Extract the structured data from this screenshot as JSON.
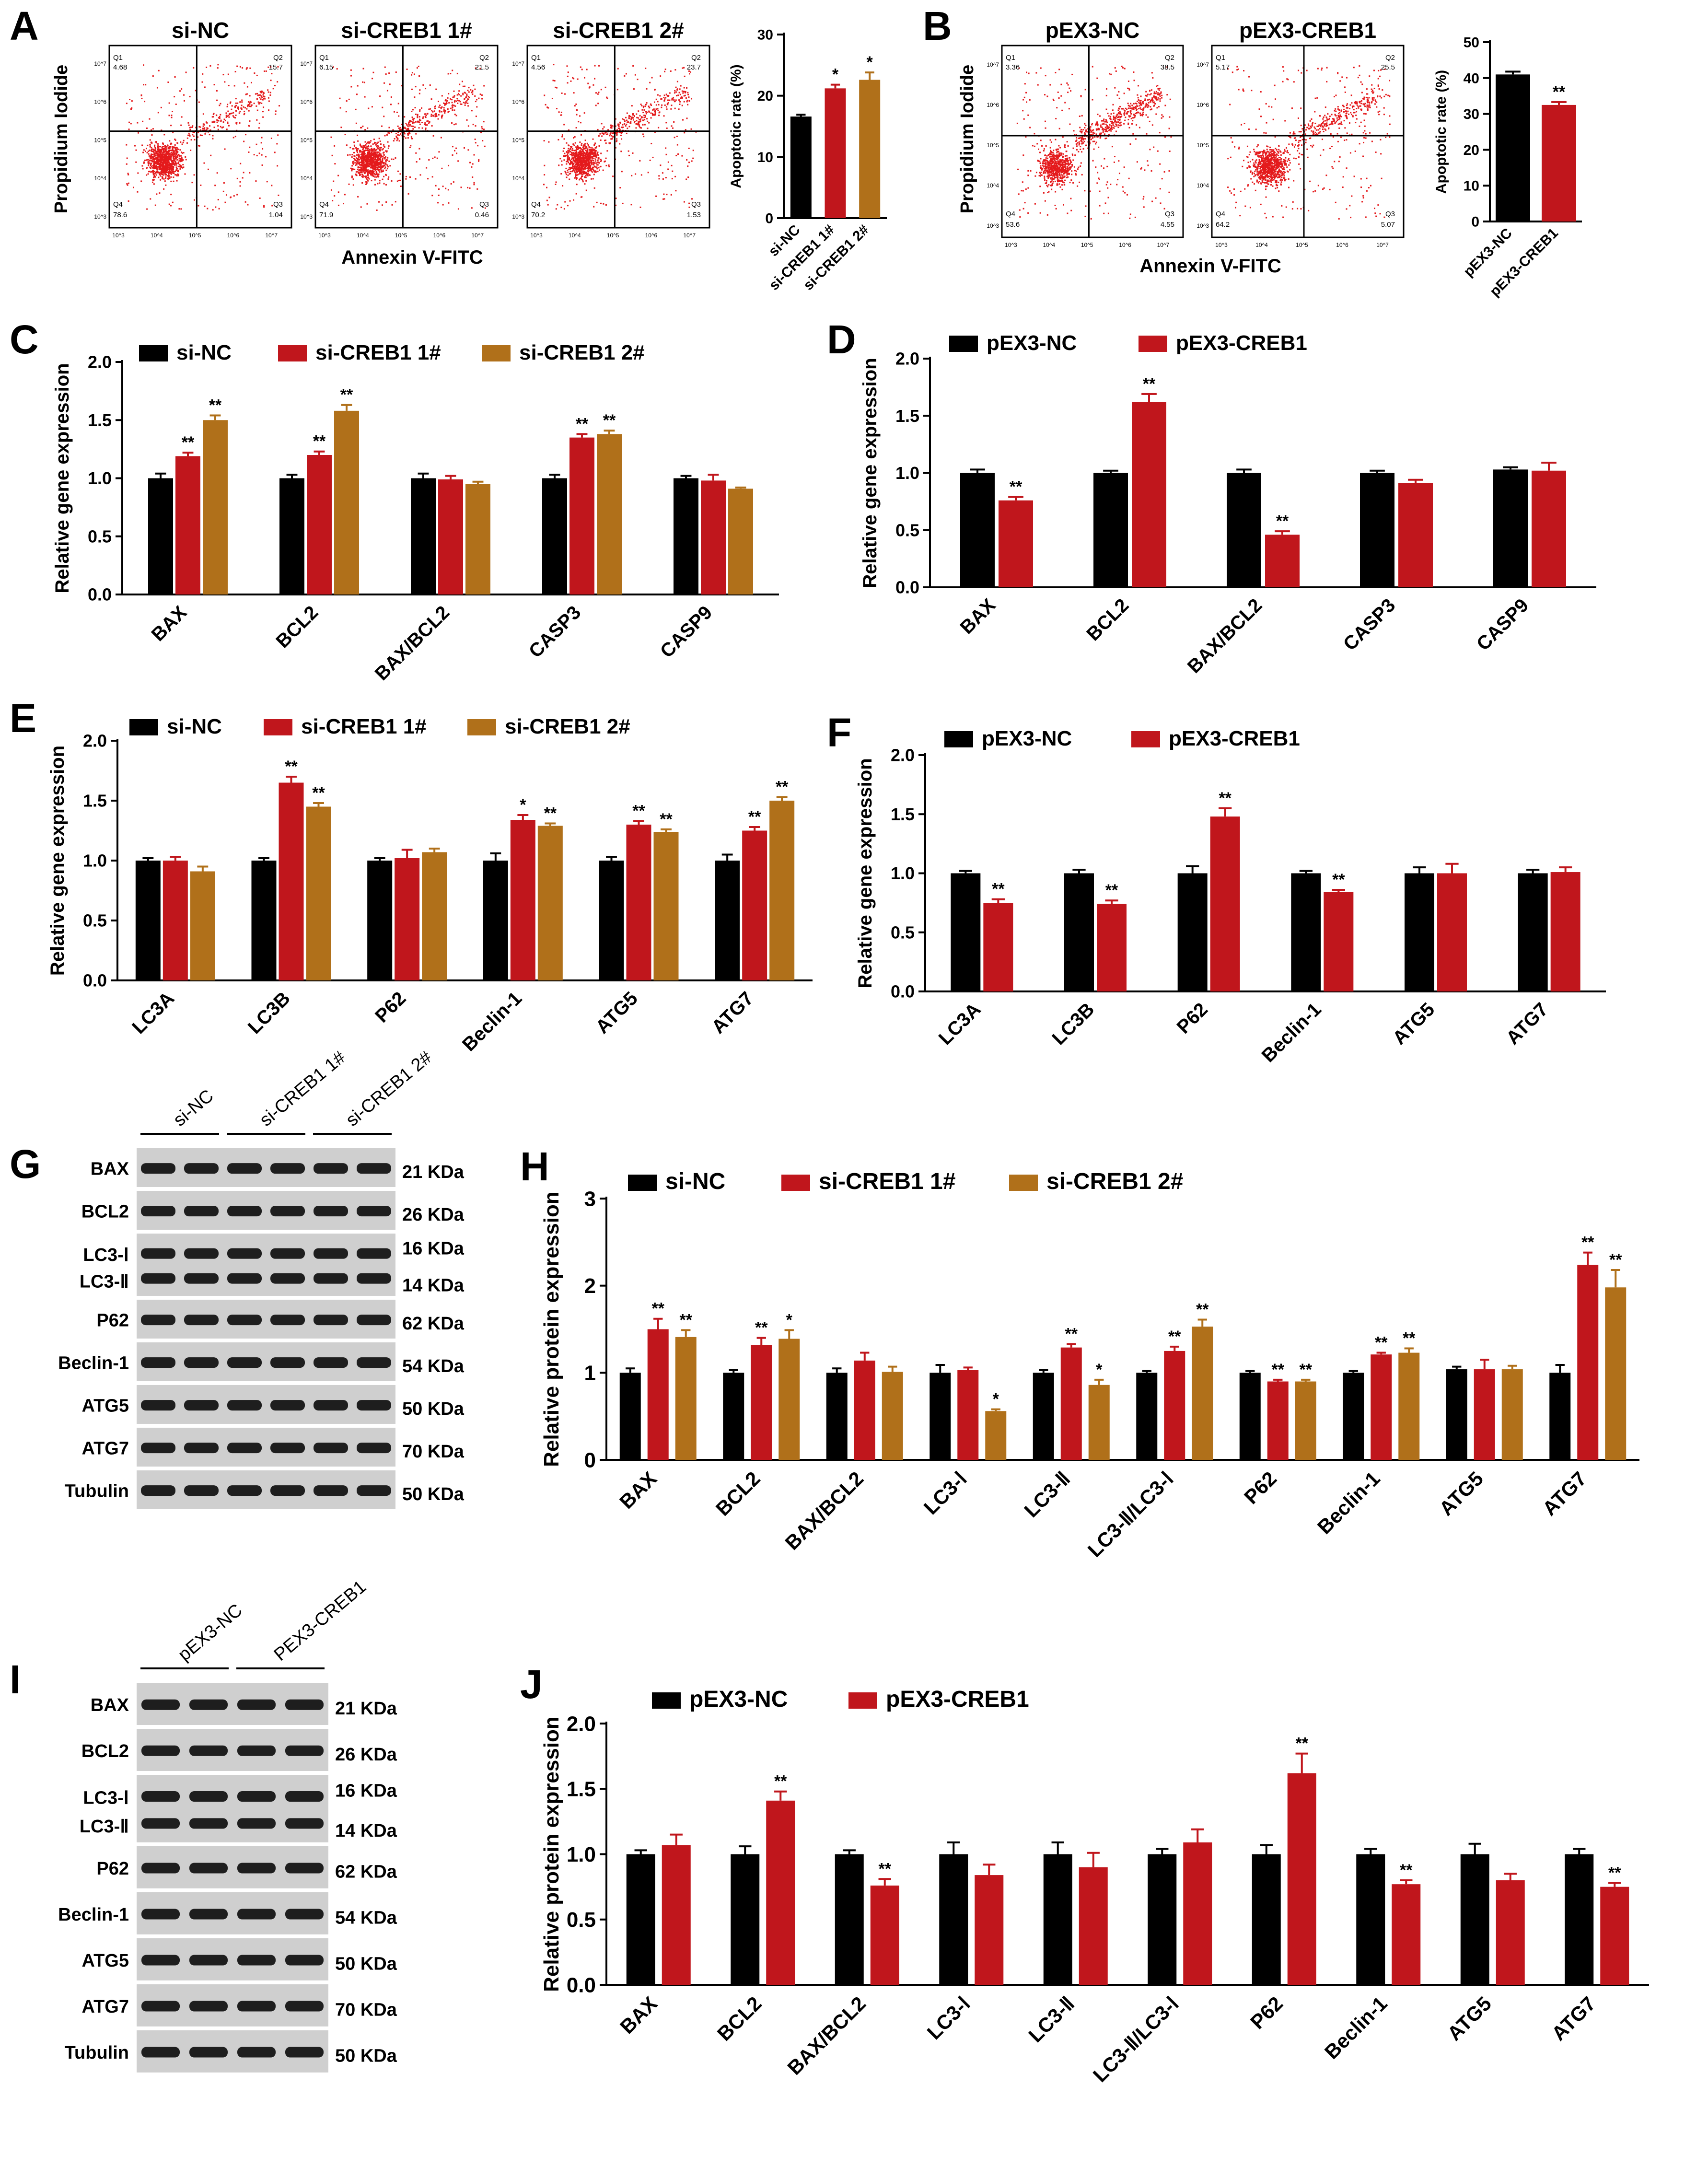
{
  "panel_letters": [
    "A",
    "B",
    "C",
    "D",
    "E",
    "F",
    "G",
    "H",
    "I",
    "J"
  ],
  "colors": {
    "black": "#000000",
    "red": "#c0161c",
    "gold": "#b0701a",
    "dots": "#e41a1c",
    "blot_dark": "#1e1e1e",
    "blot_bg": "#cfcfcf"
  },
  "flow": {
    "A": {
      "ylabel": "Propidium Iodide",
      "xlabel": "Annexin V-FITC",
      "plots": [
        {
          "title": "si-NC",
          "q1": "4.68",
          "q2": "15.7",
          "q3": "1.04",
          "q4": "78.6"
        },
        {
          "title": "si-CREB1 1#",
          "q1": "6.15",
          "q2": "21.5",
          "q3": "0.46",
          "q4": "71.9"
        },
        {
          "title": "si-CREB1 2#",
          "q1": "4.56",
          "q2": "23.7",
          "q3": "1.53",
          "q4": "70.2"
        }
      ],
      "quad_labels": [
        "Q1",
        "Q2",
        "Q3",
        "Q4"
      ],
      "tick_labels": [
        "10^3",
        "10^4",
        "10^5",
        "10^6",
        "10^7"
      ]
    },
    "B": {
      "ylabel": "Propidium Iodide",
      "xlabel": "Annexin V-FITC",
      "plots": [
        {
          "title": "pEX3-NC",
          "q1": "3.36",
          "q2": "38.5",
          "q3": "4.55",
          "q4": "53.6"
        },
        {
          "title": "pEX3-CREB1",
          "q1": "5.17",
          "q2": "25.5",
          "q3": "5.07",
          "q4": "64.2"
        }
      ],
      "quad_labels": [
        "Q1",
        "Q2",
        "Q3",
        "Q4"
      ],
      "tick_labels": [
        "10^3",
        "10^4",
        "10^5",
        "10^6",
        "10^7"
      ]
    }
  },
  "blots": {
    "G": {
      "groups": [
        "si-NC",
        "si-CREB1 1#",
        "si-CREB1 2#"
      ],
      "rows": [
        {
          "label": "BAX",
          "kda": "21 KDa"
        },
        {
          "label": "BCL2",
          "kda": "26 KDa"
        },
        {
          "label": "LC3-Ⅰ",
          "label2": "LC3-Ⅱ",
          "kda": "16 KDa",
          "kda2": "14 KDa"
        },
        {
          "label": "P62",
          "kda": "62 KDa"
        },
        {
          "label": "Beclin-1",
          "kda": "54 KDa"
        },
        {
          "label": "ATG5",
          "kda": "50 KDa"
        },
        {
          "label": "ATG7",
          "kda": "70 KDa"
        },
        {
          "label": "Tubulin",
          "kda": "50 KDa"
        }
      ]
    },
    "I": {
      "groups": [
        "pEX3-NC",
        "PEX3-CREB1"
      ],
      "rows": [
        {
          "label": "BAX",
          "kda": "21 KDa"
        },
        {
          "label": "BCL2",
          "kda": "26 KDa"
        },
        {
          "label": "LC3-Ⅰ",
          "label2": "LC3-Ⅱ",
          "kda": "16 KDa",
          "kda2": "14 KDa"
        },
        {
          "label": "P62",
          "kda": "62 KDa"
        },
        {
          "label": "Beclin-1",
          "kda": "54 KDa"
        },
        {
          "label": "ATG5",
          "kda": "50 KDa"
        },
        {
          "label": "ATG7",
          "kda": "70 KDa"
        },
        {
          "label": "Tubulin",
          "kda": "50 KDa"
        }
      ]
    }
  },
  "chart_data": [
    {
      "id": "A-bar",
      "type": "bar",
      "title": "",
      "xlabel": "",
      "ylabel": "Apoptotic rate (%)",
      "ylim": [
        0,
        30
      ],
      "yticks": [
        0,
        10,
        20,
        30
      ],
      "categories": [
        "si-NC",
        "si-CREB1 1#",
        "si-CREB1 2#"
      ],
      "values": [
        16.6,
        21.2,
        22.6
      ],
      "errors": [
        0.3,
        0.6,
        1.2
      ],
      "sig": [
        "",
        "*",
        "*"
      ],
      "colors": [
        "black",
        "red",
        "gold"
      ]
    },
    {
      "id": "B-bar",
      "type": "bar",
      "title": "",
      "xlabel": "",
      "ylabel": "Apoptotic rate (%)",
      "ylim": [
        0,
        50
      ],
      "yticks": [
        0,
        10,
        20,
        30,
        40,
        50
      ],
      "categories": [
        "pEX3-NC",
        "pEX3-CREB1"
      ],
      "values": [
        41,
        32.5
      ],
      "errors": [
        0.8,
        0.8
      ],
      "sig": [
        "",
        "**"
      ],
      "colors": [
        "black",
        "red"
      ]
    },
    {
      "id": "C",
      "type": "bar",
      "ylabel": "Relative gene expression",
      "ylim": [
        0,
        2.0
      ],
      "yticks": [
        0.0,
        0.5,
        1.0,
        1.5,
        2.0
      ],
      "categories": [
        "BAX",
        "BCL2",
        "BAX/BCL2",
        "CASP3",
        "CASP9"
      ],
      "series": [
        {
          "name": "si-NC",
          "color": "black",
          "values": [
            1.0,
            1.0,
            1.0,
            1.0,
            1.0
          ],
          "errors": [
            0.04,
            0.03,
            0.04,
            0.03,
            0.02
          ],
          "sig": [
            "",
            "",
            "",
            "",
            ""
          ]
        },
        {
          "name": "si-CREB1 1#",
          "color": "red",
          "values": [
            1.19,
            1.2,
            0.99,
            1.35,
            0.98
          ],
          "errors": [
            0.03,
            0.03,
            0.03,
            0.03,
            0.05
          ],
          "sig": [
            "**",
            "**",
            "",
            "**",
            ""
          ]
        },
        {
          "name": "si-CREB1 2#",
          "color": "gold",
          "values": [
            1.5,
            1.58,
            0.95,
            1.38,
            0.91
          ],
          "errors": [
            0.04,
            0.05,
            0.02,
            0.03,
            0.01
          ],
          "sig": [
            "**",
            "**",
            "",
            "**",
            ""
          ]
        }
      ]
    },
    {
      "id": "D",
      "type": "bar",
      "ylabel": "Relative gene expression",
      "ylim": [
        0,
        2.0
      ],
      "yticks": [
        0.0,
        0.5,
        1.0,
        1.5,
        2.0
      ],
      "categories": [
        "BAX",
        "BCL2",
        "BAX/BCL2",
        "CASP3",
        "CASP9"
      ],
      "series": [
        {
          "name": "pEX3-NC",
          "color": "black",
          "values": [
            1.0,
            1.0,
            1.0,
            1.0,
            1.03
          ],
          "errors": [
            0.03,
            0.02,
            0.03,
            0.02,
            0.02
          ],
          "sig": [
            "",
            "",
            "",
            "",
            ""
          ]
        },
        {
          "name": "pEX3-CREB1",
          "color": "red",
          "values": [
            0.76,
            1.62,
            0.46,
            0.91,
            1.02
          ],
          "errors": [
            0.03,
            0.07,
            0.03,
            0.03,
            0.07
          ],
          "sig": [
            "**",
            "**",
            "**",
            "",
            ""
          ]
        }
      ]
    },
    {
      "id": "E",
      "type": "bar",
      "ylabel": "Relative gene expression",
      "ylim": [
        0,
        2.0
      ],
      "yticks": [
        0.0,
        0.5,
        1.0,
        1.5,
        2.0
      ],
      "categories": [
        "LC3A",
        "LC3B",
        "P62",
        "Beclin-1",
        "ATG5",
        "ATG7"
      ],
      "series": [
        {
          "name": "si-NC",
          "color": "black",
          "values": [
            1.0,
            1.0,
            1.0,
            1.0,
            1.0,
            1.0
          ],
          "errors": [
            0.02,
            0.02,
            0.02,
            0.06,
            0.03,
            0.05
          ],
          "sig": [
            "",
            "",
            "",
            "",
            "",
            ""
          ]
        },
        {
          "name": "si-CREB1 1#",
          "color": "red",
          "values": [
            1.0,
            1.65,
            1.02,
            1.34,
            1.3,
            1.25
          ],
          "errors": [
            0.03,
            0.05,
            0.07,
            0.04,
            0.03,
            0.03
          ],
          "sig": [
            "",
            "**",
            "",
            "*",
            "**",
            "**"
          ]
        },
        {
          "name": "si-CREB1 2#",
          "color": "gold",
          "values": [
            0.91,
            1.45,
            1.07,
            1.29,
            1.24,
            1.5
          ],
          "errors": [
            0.04,
            0.03,
            0.03,
            0.02,
            0.02,
            0.03
          ],
          "sig": [
            "",
            "**",
            "",
            "**",
            "**",
            "**"
          ]
        }
      ]
    },
    {
      "id": "F",
      "type": "bar",
      "ylabel": "Relative gene expression",
      "ylim": [
        0,
        2.0
      ],
      "yticks": [
        0.0,
        0.5,
        1.0,
        1.5,
        2.0
      ],
      "categories": [
        "LC3A",
        "LC3B",
        "P62",
        "Beclin-1",
        "ATG5",
        "ATG7"
      ],
      "series": [
        {
          "name": "pEX3-NC",
          "color": "black",
          "values": [
            1.0,
            1.0,
            1.0,
            1.0,
            1.0,
            1.0
          ],
          "errors": [
            0.02,
            0.03,
            0.06,
            0.02,
            0.05,
            0.03
          ],
          "sig": [
            "",
            "",
            "",
            "",
            "",
            ""
          ]
        },
        {
          "name": "pEX3-CREB1",
          "color": "red",
          "values": [
            0.75,
            0.74,
            1.48,
            0.84,
            1.0,
            1.01
          ],
          "errors": [
            0.03,
            0.03,
            0.07,
            0.02,
            0.08,
            0.04
          ],
          "sig": [
            "**",
            "**",
            "**",
            "**",
            "",
            ""
          ]
        }
      ]
    },
    {
      "id": "H",
      "type": "bar",
      "ylabel": "Relative protein expression",
      "ylim": [
        0,
        3
      ],
      "yticks": [
        0,
        1,
        2,
        3
      ],
      "categories": [
        "BAX",
        "BCL2",
        "BAX/BCL2",
        "LC3-Ⅰ",
        "LC3-Ⅱ",
        "LC3-Ⅱ/LC3-Ⅰ",
        "P62",
        "Beclin-1",
        "ATG5",
        "ATG7"
      ],
      "series": [
        {
          "name": "si-NC",
          "color": "black",
          "values": [
            1.0,
            1.0,
            1.0,
            1.0,
            1.0,
            1.0,
            1.0,
            1.0,
            1.04,
            1.0
          ],
          "errors": [
            0.05,
            0.03,
            0.05,
            0.09,
            0.03,
            0.02,
            0.02,
            0.02,
            0.03,
            0.09
          ],
          "sig": [
            "",
            "",
            "",
            "",
            "",
            "",
            "",
            "",
            "",
            ""
          ]
        },
        {
          "name": "si-CREB1 1#",
          "color": "red",
          "values": [
            1.5,
            1.32,
            1.14,
            1.03,
            1.29,
            1.25,
            0.9,
            1.21,
            1.04,
            2.24
          ],
          "errors": [
            0.12,
            0.08,
            0.09,
            0.03,
            0.04,
            0.05,
            0.02,
            0.02,
            0.11,
            0.14
          ],
          "sig": [
            "**",
            "**",
            "",
            "",
            "**",
            "**",
            "**",
            "**",
            "",
            "**"
          ]
        },
        {
          "name": "si-CREB1 2#",
          "color": "gold",
          "values": [
            1.41,
            1.39,
            1.01,
            0.56,
            0.86,
            1.53,
            0.9,
            1.23,
            1.04,
            1.98
          ],
          "errors": [
            0.08,
            0.1,
            0.06,
            0.02,
            0.06,
            0.08,
            0.02,
            0.05,
            0.04,
            0.2
          ],
          "sig": [
            "**",
            "*",
            "",
            "*",
            "*",
            "**",
            "**",
            "**",
            "",
            "**"
          ]
        }
      ]
    },
    {
      "id": "J",
      "type": "bar",
      "ylabel": "Relative protein expression",
      "ylim": [
        0,
        2.0
      ],
      "yticks": [
        0.0,
        0.5,
        1.0,
        1.5,
        2.0
      ],
      "categories": [
        "BAX",
        "BCL2",
        "BAX/BCL2",
        "LC3-Ⅰ",
        "LC3-Ⅱ",
        "LC3-Ⅱ/LC3-Ⅰ",
        "P62",
        "Beclin-1",
        "ATG5",
        "ATG7"
      ],
      "series": [
        {
          "name": "pEX3-NC",
          "color": "black",
          "values": [
            1.0,
            1.0,
            1.0,
            1.0,
            1.0,
            1.0,
            1.0,
            1.0,
            1.0,
            1.0
          ],
          "errors": [
            0.03,
            0.06,
            0.03,
            0.09,
            0.09,
            0.04,
            0.07,
            0.04,
            0.08,
            0.04
          ],
          "sig": [
            "",
            "",
            "",
            "",
            "",
            "",
            "",
            "",
            "",
            ""
          ]
        },
        {
          "name": "pEX3-CREB1",
          "color": "red",
          "values": [
            1.07,
            1.41,
            0.76,
            0.84,
            0.9,
            1.09,
            1.62,
            0.77,
            0.8,
            0.75
          ],
          "errors": [
            0.08,
            0.07,
            0.05,
            0.08,
            0.11,
            0.1,
            0.15,
            0.03,
            0.05,
            0.03
          ],
          "sig": [
            "",
            "**",
            "**",
            "",
            "",
            "",
            "**",
            "**",
            "",
            "**"
          ]
        }
      ]
    }
  ]
}
